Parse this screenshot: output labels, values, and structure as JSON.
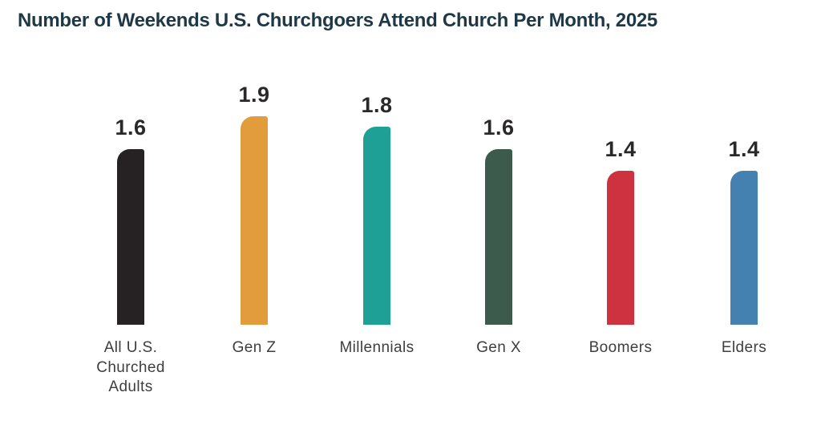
{
  "header": {
    "title": "Number of Weekends U.S. Churchgoers Attend Church Per Month, 2025"
  },
  "colors": {
    "background": "#ffffff",
    "title_text": "#1e3945",
    "value_label_text": "#2b282a",
    "category_label_text": "#3e3e3e"
  },
  "chart_data": {
    "type": "bar",
    "title": "Number of Weekends U.S. Churchgoers Attend Church Per Month, 2025",
    "categories": [
      "All U.S. Churched Adults",
      "Gen Z",
      "Millennials",
      "Gen X",
      "Boomers",
      "Elders"
    ],
    "values": [
      1.6,
      1.9,
      1.8,
      1.6,
      1.4,
      1.4
    ],
    "value_labels": [
      "1.6",
      "1.9",
      "1.8",
      "1.6",
      "1.4",
      "1.4"
    ],
    "bar_colors": [
      "#262122",
      "#E39C3B",
      "#1FA096",
      "#3C5B4C",
      "#CE3140",
      "#4480B0"
    ],
    "xlabel": "",
    "ylabel": "",
    "ylim": [
      0,
      2
    ],
    "grid": false,
    "legend": false,
    "bar_labels_position": "above",
    "axis_lines": false
  }
}
